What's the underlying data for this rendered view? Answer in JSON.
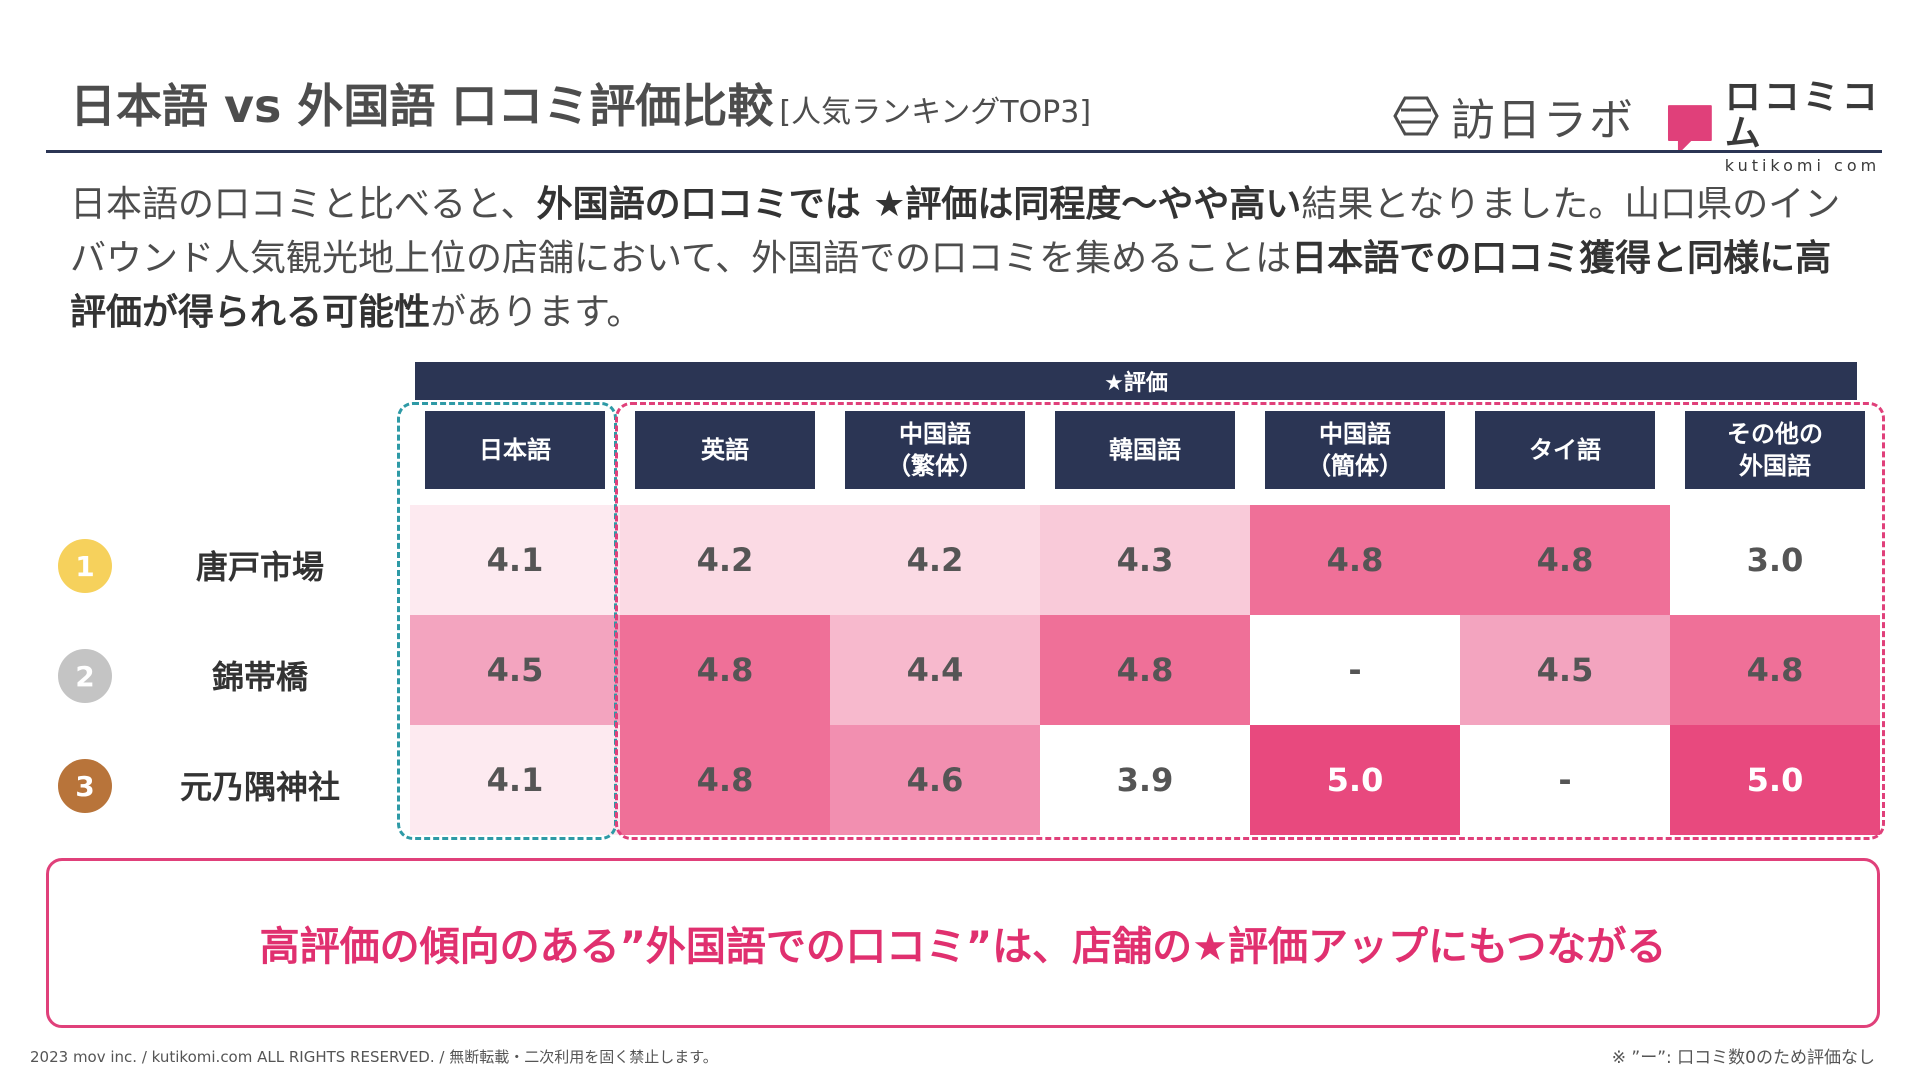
{
  "header": {
    "title": "日本語 vs 外国語 口コミ評価比較",
    "subtitle": "[人気ランキングTOP3]",
    "logo_houjin": "訪日ラボ",
    "logo_kuti": "ロコミコム",
    "logo_kuti_domain": "kutikomi com"
  },
  "lead": {
    "p1": "日本語の口コミと比べると、",
    "b1": "外国語の口コミでは ★評価は同程度〜やや高い",
    "p2": "結果となりました。山口県のインバウンド人気観光地上位の店舗において、外国語での口コミを集めることは",
    "b2": "日本語での口コミ獲得と同様に高評価が得られる可能性",
    "p3": "があります。"
  },
  "table": {
    "group_header": "★評価",
    "columns": [
      "日本語",
      "英語",
      "中国語\n（繁体）",
      "韓国語",
      "中国語\n（簡体）",
      "タイ語",
      "その他の\n外国語"
    ],
    "rows": [
      {
        "rank": "1",
        "rank_color": "#f6d15c",
        "shop": "唐戸市場",
        "values": [
          "4.1",
          "4.2",
          "4.2",
          "4.3",
          "4.8",
          "4.8",
          "3.0"
        ]
      },
      {
        "rank": "2",
        "rank_color": "#c4c4c4",
        "shop": "錦帯橋",
        "values": [
          "4.5",
          "4.8",
          "4.4",
          "4.8",
          "-",
          "4.5",
          "4.8"
        ]
      },
      {
        "rank": "3",
        "rank_color": "#b8743a",
        "shop": "元乃隅神社",
        "values": [
          "4.1",
          "4.8",
          "4.6",
          "3.9",
          "5.0",
          "-",
          "5.0"
        ]
      }
    ]
  },
  "callout": "高評価の傾向のある”外国語での口コミ”は、店舗の★評価アップにもつながる",
  "footer": "2023 mov inc. / kutikomi.com ALL RIGHTS RESERVED. / 無断転載・二次利用を固く禁止します。",
  "note": "※ ”ー”: 口コミ数0のため評価なし",
  "colors": {
    "navy": "#2b3554",
    "accent": "#e0306f",
    "teal": "#2e9aa6"
  }
}
